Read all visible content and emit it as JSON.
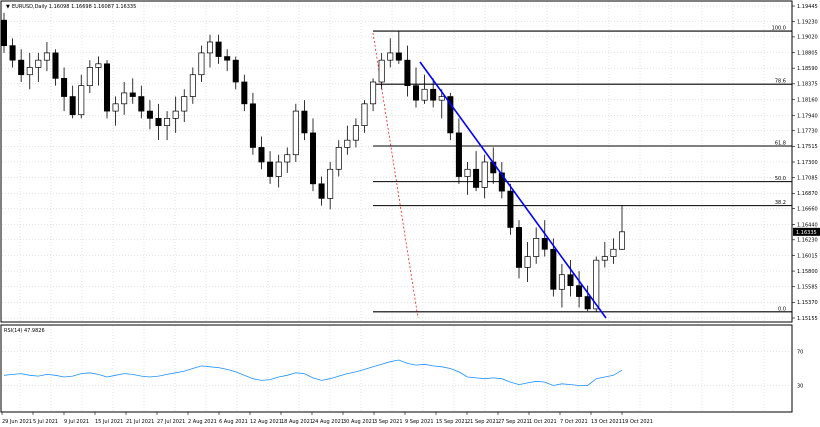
{
  "main_panel": {
    "symbol_line": "EURUSD,Daily  1.16098 1.16698 1.16087 1.16335",
    "current_price_label": "1.16335"
  },
  "rsi_panel": {
    "label": "RSI(14) 47.9826",
    "levels": [
      "70",
      "30"
    ]
  },
  "colors": {
    "bull": "#ffffff",
    "bear": "#000000",
    "grid": "#c8c8c8",
    "trendline": "#0000ff",
    "projection": "#ff0000",
    "rsi": "#1e90ff",
    "fib": "#000000"
  },
  "chart_data": {
    "type": "candlestick",
    "price_axis_ticks": [
      "1.19445",
      "1.19230",
      "1.19020",
      "1.18805",
      "1.18590",
      "1.18375",
      "1.18160",
      "1.17940",
      "1.17730",
      "1.17515",
      "1.17300",
      "1.17085",
      "1.16870",
      "1.16660",
      "1.16440",
      "1.16230",
      "1.16015",
      "1.15800",
      "1.15585",
      "1.15370",
      "1.15155"
    ],
    "date_axis_labels": [
      "29 Jun 2021",
      "5 Jul 2021",
      "9 Jul 2021",
      "15 Jul 2021",
      "21 Jul 2021",
      "27 Jul 2021",
      "2 Aug 2021",
      "6 Aug 2021",
      "12 Aug 2021",
      "18 Aug 2021",
      "24 Aug 2021",
      "30 Aug 2021",
      "3 Sep 2021",
      "9 Sep 2021",
      "15 Sep 2021",
      "21 Sep 2021",
      "27 Sep 2021",
      "1 Oct 2021",
      "7 Oct 2021",
      "13 Oct 2021",
      "19 Oct 2021"
    ],
    "fibonacci_levels": [
      {
        "label": "100.0",
        "price": 1.191
      },
      {
        "label": "78.6",
        "price": 1.1837
      },
      {
        "label": "61.8",
        "price": 1.1752
      },
      {
        "label": "50.0",
        "price": 1.1703
      },
      {
        "label": "38.2",
        "price": 1.167
      },
      {
        "label": "0.0",
        "price": 1.1524
      }
    ],
    "candles": [
      {
        "o": 1.1925,
        "h": 1.1935,
        "l": 1.188,
        "c": 1.189
      },
      {
        "o": 1.189,
        "h": 1.19,
        "l": 1.186,
        "c": 1.187
      },
      {
        "o": 1.187,
        "h": 1.1885,
        "l": 1.184,
        "c": 1.185
      },
      {
        "o": 1.185,
        "h": 1.188,
        "l": 1.183,
        "c": 1.186
      },
      {
        "o": 1.186,
        "h": 1.188,
        "l": 1.184,
        "c": 1.187
      },
      {
        "o": 1.187,
        "h": 1.1895,
        "l": 1.1855,
        "c": 1.188
      },
      {
        "o": 1.188,
        "h": 1.1885,
        "l": 1.1835,
        "c": 1.1845
      },
      {
        "o": 1.1845,
        "h": 1.186,
        "l": 1.18,
        "c": 1.182
      },
      {
        "o": 1.182,
        "h": 1.1835,
        "l": 1.179,
        "c": 1.1795
      },
      {
        "o": 1.1795,
        "h": 1.185,
        "l": 1.179,
        "c": 1.1835
      },
      {
        "o": 1.1835,
        "h": 1.187,
        "l": 1.1825,
        "c": 1.186
      },
      {
        "o": 1.186,
        "h": 1.1875,
        "l": 1.1835,
        "c": 1.1865
      },
      {
        "o": 1.1865,
        "h": 1.187,
        "l": 1.179,
        "c": 1.18
      },
      {
        "o": 1.18,
        "h": 1.182,
        "l": 1.178,
        "c": 1.181
      },
      {
        "o": 1.181,
        "h": 1.184,
        "l": 1.1795,
        "c": 1.1825
      },
      {
        "o": 1.1825,
        "h": 1.1845,
        "l": 1.181,
        "c": 1.182
      },
      {
        "o": 1.182,
        "h": 1.1835,
        "l": 1.179,
        "c": 1.18
      },
      {
        "o": 1.18,
        "h": 1.1815,
        "l": 1.1775,
        "c": 1.179
      },
      {
        "o": 1.179,
        "h": 1.181,
        "l": 1.176,
        "c": 1.178
      },
      {
        "o": 1.178,
        "h": 1.18,
        "l": 1.176,
        "c": 1.179
      },
      {
        "o": 1.179,
        "h": 1.182,
        "l": 1.177,
        "c": 1.18
      },
      {
        "o": 1.18,
        "h": 1.183,
        "l": 1.1785,
        "c": 1.182
      },
      {
        "o": 1.182,
        "h": 1.186,
        "l": 1.181,
        "c": 1.185
      },
      {
        "o": 1.185,
        "h": 1.189,
        "l": 1.184,
        "c": 1.188
      },
      {
        "o": 1.188,
        "h": 1.1905,
        "l": 1.186,
        "c": 1.1895
      },
      {
        "o": 1.1895,
        "h": 1.1905,
        "l": 1.1865,
        "c": 1.1875
      },
      {
        "o": 1.1875,
        "h": 1.1885,
        "l": 1.1855,
        "c": 1.187
      },
      {
        "o": 1.187,
        "h": 1.1875,
        "l": 1.183,
        "c": 1.184
      },
      {
        "o": 1.184,
        "h": 1.185,
        "l": 1.18,
        "c": 1.181
      },
      {
        "o": 1.181,
        "h": 1.1825,
        "l": 1.174,
        "c": 1.175
      },
      {
        "o": 1.175,
        "h": 1.1765,
        "l": 1.172,
        "c": 1.173
      },
      {
        "o": 1.173,
        "h": 1.1745,
        "l": 1.17,
        "c": 1.171
      },
      {
        "o": 1.171,
        "h": 1.174,
        "l": 1.1695,
        "c": 1.173
      },
      {
        "o": 1.173,
        "h": 1.175,
        "l": 1.1715,
        "c": 1.174
      },
      {
        "o": 1.174,
        "h": 1.181,
        "l": 1.173,
        "c": 1.18
      },
      {
        "o": 1.18,
        "h": 1.1815,
        "l": 1.176,
        "c": 1.177
      },
      {
        "o": 1.177,
        "h": 1.179,
        "l": 1.169,
        "c": 1.17
      },
      {
        "o": 1.17,
        "h": 1.171,
        "l": 1.167,
        "c": 1.168
      },
      {
        "o": 1.168,
        "h": 1.173,
        "l": 1.1665,
        "c": 1.172
      },
      {
        "o": 1.172,
        "h": 1.176,
        "l": 1.171,
        "c": 1.175
      },
      {
        "o": 1.175,
        "h": 1.178,
        "l": 1.174,
        "c": 1.176
      },
      {
        "o": 1.176,
        "h": 1.179,
        "l": 1.175,
        "c": 1.178
      },
      {
        "o": 1.178,
        "h": 1.1815,
        "l": 1.177,
        "c": 1.181
      },
      {
        "o": 1.181,
        "h": 1.1845,
        "l": 1.18,
        "c": 1.184
      },
      {
        "o": 1.184,
        "h": 1.188,
        "l": 1.183,
        "c": 1.187
      },
      {
        "o": 1.187,
        "h": 1.19,
        "l": 1.186,
        "c": 1.188
      },
      {
        "o": 1.188,
        "h": 1.191,
        "l": 1.1865,
        "c": 1.187
      },
      {
        "o": 1.187,
        "h": 1.189,
        "l": 1.182,
        "c": 1.1835
      },
      {
        "o": 1.1835,
        "h": 1.186,
        "l": 1.1805,
        "c": 1.1815
      },
      {
        "o": 1.1815,
        "h": 1.185,
        "l": 1.181,
        "c": 1.183
      },
      {
        "o": 1.183,
        "h": 1.1845,
        "l": 1.1805,
        "c": 1.1815
      },
      {
        "o": 1.1815,
        "h": 1.183,
        "l": 1.179,
        "c": 1.182
      },
      {
        "o": 1.182,
        "h": 1.1825,
        "l": 1.176,
        "c": 1.177
      },
      {
        "o": 1.177,
        "h": 1.179,
        "l": 1.17,
        "c": 1.171
      },
      {
        "o": 1.171,
        "h": 1.173,
        "l": 1.1685,
        "c": 1.172
      },
      {
        "o": 1.172,
        "h": 1.1745,
        "l": 1.169,
        "c": 1.1695
      },
      {
        "o": 1.1695,
        "h": 1.174,
        "l": 1.168,
        "c": 1.173
      },
      {
        "o": 1.173,
        "h": 1.175,
        "l": 1.17,
        "c": 1.1715
      },
      {
        "o": 1.1715,
        "h": 1.173,
        "l": 1.168,
        "c": 1.169
      },
      {
        "o": 1.169,
        "h": 1.17,
        "l": 1.163,
        "c": 1.164
      },
      {
        "o": 1.164,
        "h": 1.165,
        "l": 1.157,
        "c": 1.1585
      },
      {
        "o": 1.1585,
        "h": 1.162,
        "l": 1.1565,
        "c": 1.16
      },
      {
        "o": 1.16,
        "h": 1.164,
        "l": 1.159,
        "c": 1.1625
      },
      {
        "o": 1.1625,
        "h": 1.165,
        "l": 1.16,
        "c": 1.161
      },
      {
        "o": 1.161,
        "h": 1.1625,
        "l": 1.1545,
        "c": 1.1555
      },
      {
        "o": 1.1555,
        "h": 1.159,
        "l": 1.153,
        "c": 1.1575
      },
      {
        "o": 1.1575,
        "h": 1.1595,
        "l": 1.1545,
        "c": 1.156
      },
      {
        "o": 1.156,
        "h": 1.158,
        "l": 1.153,
        "c": 1.1545
      },
      {
        "o": 1.1545,
        "h": 1.156,
        "l": 1.1525,
        "c": 1.1528
      },
      {
        "o": 1.1528,
        "h": 1.16,
        "l": 1.1524,
        "c": 1.1595
      },
      {
        "o": 1.1595,
        "h": 1.162,
        "l": 1.1585,
        "c": 1.16
      },
      {
        "o": 1.16,
        "h": 1.1625,
        "l": 1.159,
        "c": 1.161
      },
      {
        "o": 1.161,
        "h": 1.167,
        "l": 1.1609,
        "c": 1.1634
      }
    ],
    "rsi_values": [
      42,
      43,
      44,
      42,
      41,
      43,
      42,
      40,
      41,
      44,
      45,
      43,
      40,
      42,
      44,
      43,
      41,
      40,
      41,
      43,
      45,
      47,
      50,
      53,
      52,
      51,
      49,
      46,
      42,
      38,
      36,
      37,
      40,
      42,
      45,
      44,
      39,
      36,
      38,
      41,
      44,
      46,
      49,
      52,
      55,
      58,
      60,
      56,
      54,
      55,
      53,
      52,
      50,
      46,
      40,
      39,
      38,
      39,
      38,
      34,
      31,
      33,
      35,
      34,
      30,
      32,
      31,
      30,
      30,
      38,
      40,
      42,
      48
    ]
  }
}
